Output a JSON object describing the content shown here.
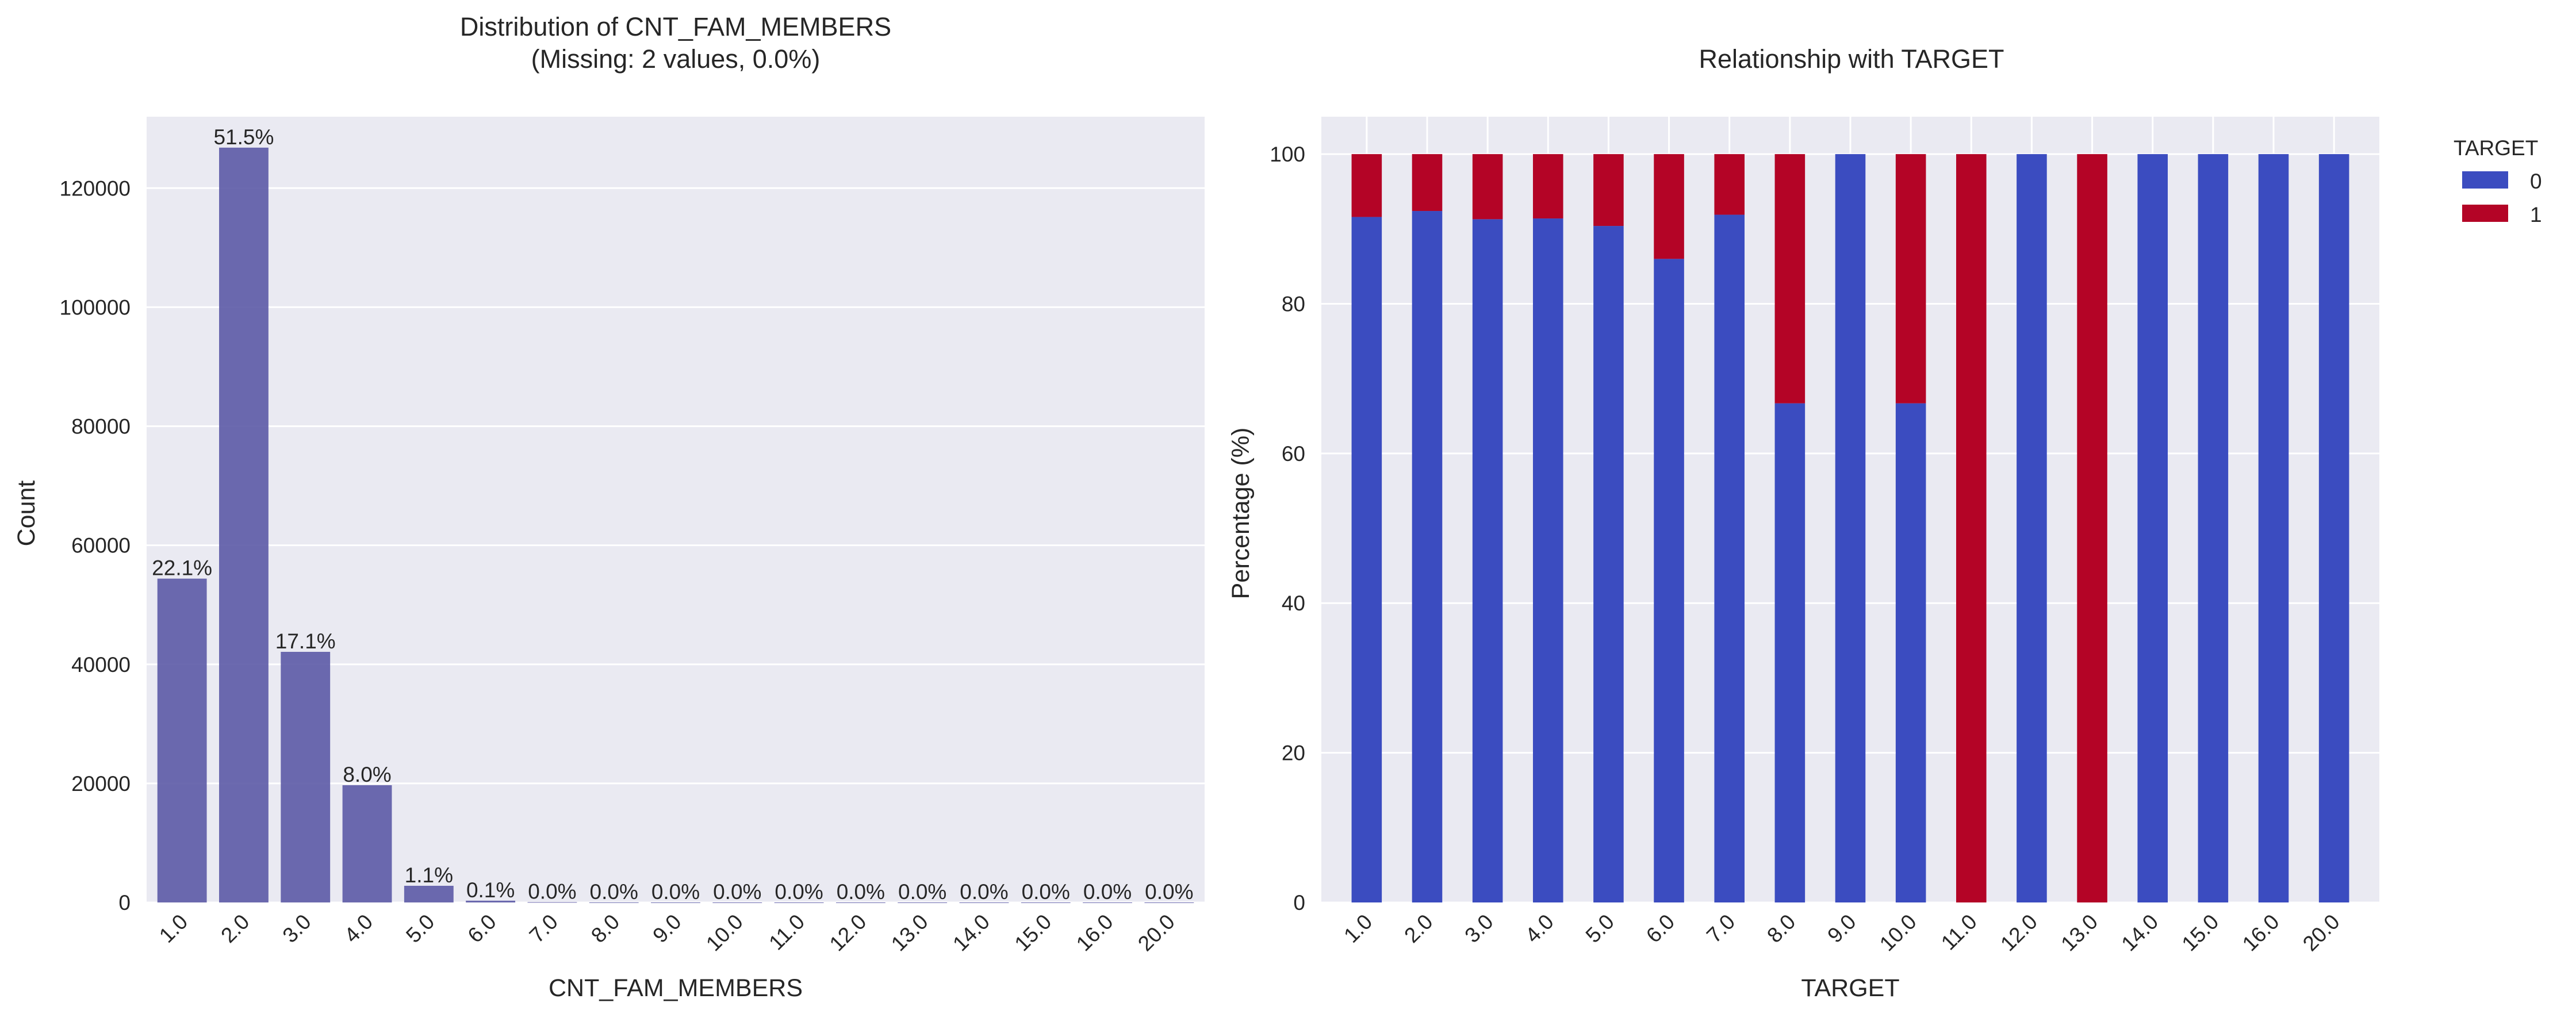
{
  "chart_data": [
    {
      "type": "bar",
      "title": "Distribution of CNT_FAM_MEMBERS",
      "subtitle": "(Missing: 2 values, 0.0%)",
      "xlabel": "CNT_FAM_MEMBERS",
      "ylabel": "Count",
      "categories": [
        "1.0",
        "2.0",
        "3.0",
        "4.0",
        "5.0",
        "6.0",
        "7.0",
        "8.0",
        "9.0",
        "10.0",
        "11.0",
        "12.0",
        "13.0",
        "14.0",
        "15.0",
        "16.0",
        "20.0"
      ],
      "values": [
        54400,
        126800,
        42100,
        19700,
        2800,
        300,
        60,
        15,
        5,
        3,
        1,
        1,
        1,
        1,
        1,
        1,
        1
      ],
      "data_labels": [
        "22.1%",
        "51.5%",
        "17.1%",
        "8.0%",
        "1.1%",
        "0.1%",
        "0.0%",
        "0.0%",
        "0.0%",
        "0.0%",
        "0.0%",
        "0.0%",
        "0.0%",
        "0.0%",
        "0.0%",
        "0.0%",
        "0.0%"
      ],
      "ylim": [
        0,
        132000
      ],
      "yticks": [
        0,
        20000,
        40000,
        60000,
        80000,
        100000,
        120000
      ],
      "grid": true,
      "color": "#5c5aa6"
    },
    {
      "type": "bar",
      "stacked": true,
      "title": "Relationship with TARGET",
      "xlabel": "TARGET",
      "ylabel": "Percentage (%)",
      "categories": [
        "1.0",
        "2.0",
        "3.0",
        "4.0",
        "5.0",
        "6.0",
        "7.0",
        "8.0",
        "9.0",
        "10.0",
        "11.0",
        "12.0",
        "13.0",
        "14.0",
        "15.0",
        "16.0",
        "20.0"
      ],
      "series": [
        {
          "name": "0",
          "color": "#3b4cc0",
          "values": [
            91.6,
            92.4,
            91.3,
            91.4,
            90.4,
            86.0,
            91.9,
            66.7,
            100,
            66.7,
            0,
            100,
            0,
            100,
            100,
            100,
            100
          ]
        },
        {
          "name": "1",
          "color": "#b40426",
          "values": [
            8.4,
            7.6,
            8.7,
            8.6,
            9.6,
            14.0,
            8.1,
            33.3,
            0,
            33.3,
            100,
            0,
            100,
            0,
            0,
            0,
            0
          ]
        }
      ],
      "ylim": [
        0,
        105
      ],
      "yticks": [
        0,
        20,
        40,
        60,
        80,
        100
      ],
      "grid": true,
      "legend": {
        "title": "TARGET",
        "position": "outside-top-right"
      }
    }
  ]
}
